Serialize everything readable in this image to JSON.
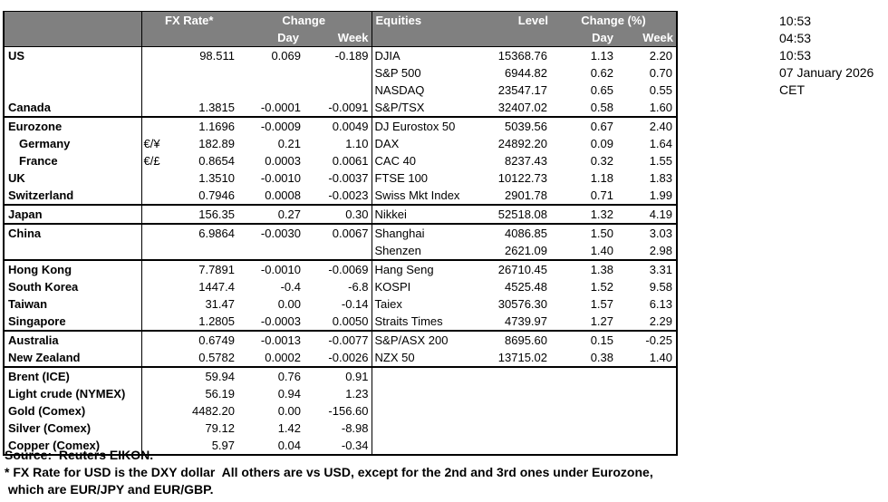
{
  "table": {
    "fx_header": {
      "rate": "FX Rate*",
      "change": "Change",
      "day": "Day",
      "week": "Week"
    },
    "eq_header": {
      "title": "Equities",
      "level": "Level",
      "change": "Change (%)",
      "day": "Day",
      "week": "Week"
    }
  },
  "rows": [
    {
      "name": "US",
      "indent": false,
      "sep": false,
      "sym": "",
      "rate": "98.511",
      "day": "0.069",
      "week": "-0.189",
      "eq_name": "DJIA",
      "eq_level": "15368.76",
      "eq_day": "1.13",
      "eq_week": "2.20"
    },
    {
      "name": "",
      "indent": false,
      "sep": false,
      "sym": "",
      "rate": "",
      "day": "",
      "week": "",
      "eq_name": "S&P 500",
      "eq_level": "6944.82",
      "eq_day": "0.62",
      "eq_week": "0.70"
    },
    {
      "name": "",
      "indent": false,
      "sep": false,
      "sym": "",
      "rate": "",
      "day": "",
      "week": "",
      "eq_name": "NASDAQ",
      "eq_level": "23547.17",
      "eq_day": "0.65",
      "eq_week": "0.55"
    },
    {
      "name": "Canada",
      "indent": false,
      "sep": false,
      "sym": "",
      "rate": "1.3815",
      "day": "-0.0001",
      "week": "-0.0091",
      "eq_name": "S&P/TSX",
      "eq_level": "32407.02",
      "eq_day": "0.58",
      "eq_week": "1.60"
    },
    {
      "name": "Eurozone",
      "indent": false,
      "sep": true,
      "sym": "",
      "rate": "1.1696",
      "day": "-0.0009",
      "week": "0.0049",
      "eq_name": "DJ Eurostox 50",
      "eq_level": "5039.56",
      "eq_day": "0.67",
      "eq_week": "2.40"
    },
    {
      "name": "Germany",
      "indent": true,
      "sep": false,
      "sym": "€/¥",
      "rate": "182.89",
      "day": "0.21",
      "week": "1.10",
      "eq_name": "DAX",
      "eq_level": "24892.20",
      "eq_day": "0.09",
      "eq_week": "1.64"
    },
    {
      "name": "France",
      "indent": true,
      "sep": false,
      "sym": "€/£",
      "rate": "0.8654",
      "day": "0.0003",
      "week": "0.0061",
      "eq_name": "CAC 40",
      "eq_level": "8237.43",
      "eq_day": "0.32",
      "eq_week": "1.55"
    },
    {
      "name": "UK",
      "indent": false,
      "sep": false,
      "sym": "",
      "rate": "1.3510",
      "day": "-0.0010",
      "week": "-0.0037",
      "eq_name": "FTSE 100",
      "eq_level": "10122.73",
      "eq_day": "1.18",
      "eq_week": "1.83"
    },
    {
      "name": "Switzerland",
      "indent": false,
      "sep": false,
      "sym": "",
      "rate": "0.7946",
      "day": "0.0008",
      "week": "-0.0023",
      "eq_name": "Swiss Mkt Index",
      "eq_level": "2901.78",
      "eq_day": "0.71",
      "eq_week": "1.99"
    },
    {
      "name": "Japan",
      "indent": false,
      "sep": true,
      "sym": "",
      "rate": "156.35",
      "day": "0.27",
      "week": "0.30",
      "eq_name": "Nikkei",
      "eq_level": "52518.08",
      "eq_day": "1.32",
      "eq_week": "4.19"
    },
    {
      "name": "China",
      "indent": false,
      "sep": true,
      "sym": "",
      "rate": "6.9864",
      "day": "-0.0030",
      "week": "0.0067",
      "eq_name": "Shanghai",
      "eq_level": "4086.85",
      "eq_day": "1.50",
      "eq_week": "3.03"
    },
    {
      "name": "",
      "indent": false,
      "sep": false,
      "sym": "",
      "rate": "",
      "day": "",
      "week": "",
      "eq_name": "Shenzen",
      "eq_level": "2621.09",
      "eq_day": "1.40",
      "eq_week": "2.98"
    },
    {
      "name": "Hong Kong",
      "indent": false,
      "sep": true,
      "sym": "",
      "rate": "7.7891",
      "day": "-0.0010",
      "week": "-0.0069",
      "eq_name": "Hang Seng",
      "eq_level": "26710.45",
      "eq_day": "1.38",
      "eq_week": "3.31"
    },
    {
      "name": "South Korea",
      "indent": false,
      "sep": false,
      "sym": "",
      "rate": "1447.4",
      "day": "-0.4",
      "week": "-6.8",
      "eq_name": "KOSPI",
      "eq_level": "4525.48",
      "eq_day": "1.52",
      "eq_week": "9.58"
    },
    {
      "name": "Taiwan",
      "indent": false,
      "sep": false,
      "sym": "",
      "rate": "31.47",
      "day": "0.00",
      "week": "-0.14",
      "eq_name": "Taiex",
      "eq_level": "30576.30",
      "eq_day": "1.57",
      "eq_week": "6.13"
    },
    {
      "name": "Singapore",
      "indent": false,
      "sep": false,
      "sym": "",
      "rate": "1.2805",
      "day": "-0.0003",
      "week": "0.0050",
      "eq_name": "Straits Times",
      "eq_level": "4739.97",
      "eq_day": "1.27",
      "eq_week": "2.29"
    },
    {
      "name": "Australia",
      "indent": false,
      "sep": true,
      "sym": "",
      "rate": "0.6749",
      "day": "-0.0013",
      "week": "-0.0077",
      "eq_name": "S&P/ASX  200",
      "eq_level": "8695.60",
      "eq_day": "0.15",
      "eq_week": "-0.25"
    },
    {
      "name": "New Zealand",
      "indent": false,
      "sep": false,
      "sym": "",
      "rate": "0.5782",
      "day": "0.0002",
      "week": "-0.0026",
      "eq_name": "NZX 50",
      "eq_level": "13715.02",
      "eq_day": "0.38",
      "eq_week": "1.40"
    },
    {
      "name": "Brent (ICE)",
      "indent": false,
      "sep": true,
      "sym": "",
      "rate": "59.94",
      "day": "0.76",
      "week": "0.91",
      "eq_name": "",
      "eq_level": "",
      "eq_day": "",
      "eq_week": ""
    },
    {
      "name": "Light crude (NYMEX)",
      "indent": false,
      "sep": false,
      "sym": "",
      "rate": "56.19",
      "day": "0.94",
      "week": "1.23",
      "eq_name": "",
      "eq_level": "",
      "eq_day": "",
      "eq_week": ""
    },
    {
      "name": "Gold (Comex)",
      "indent": false,
      "sep": false,
      "sym": "",
      "rate": "4482.20",
      "day": "0.00",
      "week": "-156.60",
      "eq_name": "",
      "eq_level": "",
      "eq_day": "",
      "eq_week": ""
    },
    {
      "name": "Silver (Comex)",
      "indent": false,
      "sep": false,
      "sym": "",
      "rate": "79.12",
      "day": "1.42",
      "week": "-8.98",
      "eq_name": "",
      "eq_level": "",
      "eq_day": "",
      "eq_week": ""
    },
    {
      "name": "Copper (Comex)",
      "indent": false,
      "sep": false,
      "sym": "",
      "rate": "5.97",
      "day": "0.04",
      "week": "-0.34",
      "eq_name": "",
      "eq_level": "",
      "eq_day": "",
      "eq_week": ""
    }
  ],
  "timestamps": [
    "10:53",
    "04:53",
    "10:53",
    "07 January 2026",
    "CET"
  ],
  "footer": {
    "source": "Source:  Reuters EIKON.",
    "note1": "* FX Rate for USD is the DXY dollar  All others are vs USD, except for the 2nd and 3rd ones under Eurozone,",
    "note2": " which are EUR/JPY and EUR/GBP."
  },
  "colors": {
    "header_bg": "#808080",
    "header_text": "#ffffff",
    "body_text": "#000000"
  }
}
